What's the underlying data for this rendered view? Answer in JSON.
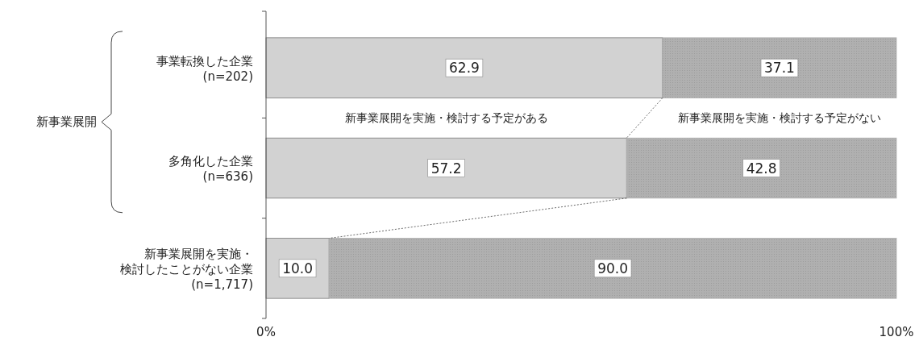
{
  "chart_data": {
    "type": "bar",
    "orientation": "horizontal",
    "stacked": true,
    "categories": [
      "事業転換した企業\n(n=202)",
      "多角化した企業\n(n=636)",
      "新事業展開を実施・検討したことがない企業\n(n=1,717)"
    ],
    "series": [
      {
        "name": "新事業展開を実施・検討する予定がある",
        "color": "#d2d2d2",
        "values": [
          62.9,
          57.2,
          10.0
        ],
        "value_labels": [
          "62.9",
          "57.2",
          "10.0"
        ]
      },
      {
        "name": "新事業展開を実施・検討する予定がない",
        "color": "#b0b0b0",
        "values": [
          37.1,
          42.8,
          90.0
        ],
        "value_labels": [
          "37.1",
          "42.8",
          "90.0"
        ]
      }
    ],
    "xlim": [
      0,
      100
    ],
    "xticks": [
      {
        "value": 0,
        "label": "0%"
      },
      {
        "value": 100,
        "label": "100%"
      }
    ],
    "annotations": [
      "新事業展開"
    ],
    "grid": false
  }
}
